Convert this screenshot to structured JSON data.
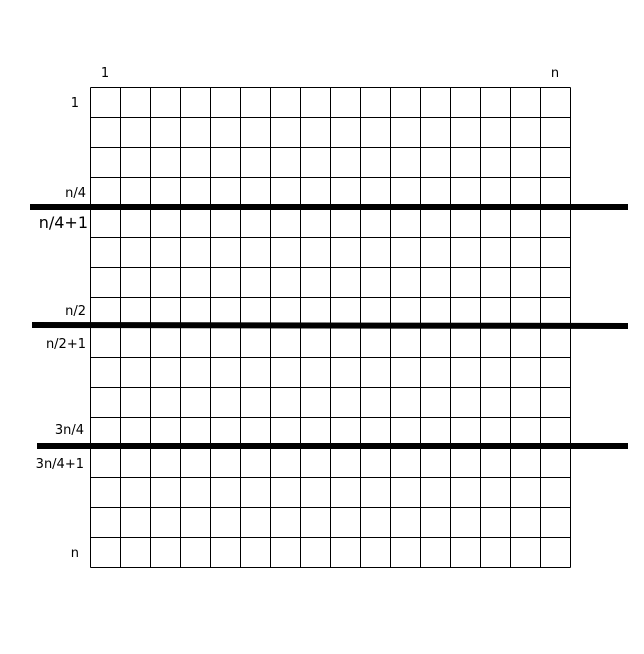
{
  "grid": {
    "rows": 16,
    "cols": 16,
    "line_color": "#000000"
  },
  "column_labels": {
    "first": "1",
    "last": "n"
  },
  "row_labels": [
    {
      "row": 1,
      "text": "1"
    },
    {
      "row": 4,
      "text": "n/4"
    },
    {
      "row": 5,
      "text": "n/4+1"
    },
    {
      "row": 8,
      "text": "n/2"
    },
    {
      "row": 9,
      "text": "n/2+1"
    },
    {
      "row": 12,
      "text": "3n/4"
    },
    {
      "row": 13,
      "text": "3n/4+1"
    },
    {
      "row": 16,
      "text": "n"
    }
  ],
  "partitions": {
    "after_rows": [
      4,
      8,
      12
    ],
    "color": "#000000"
  }
}
